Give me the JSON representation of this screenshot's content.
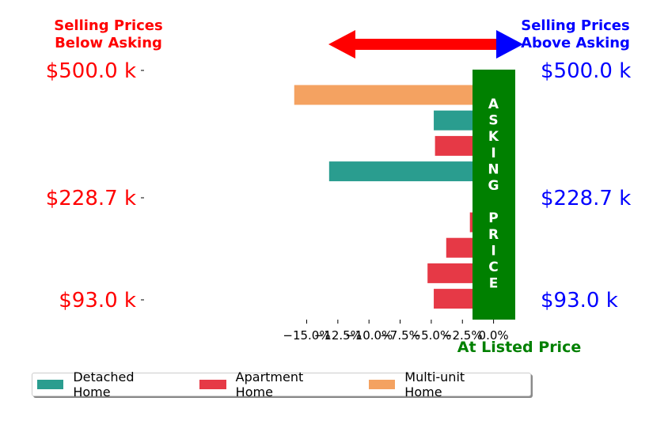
{
  "chart_data": {
    "type": "bar",
    "orientation": "horizontal",
    "x_ticks": [
      -15.0,
      -12.5,
      -10.0,
      -7.5,
      -5.0,
      -2.5,
      0.0
    ],
    "x_tick_labels": [
      "−15.0%",
      "−12.5%",
      "−10.0%",
      "−7.5%",
      "−5.0%",
      "−2.5%",
      "0.0%"
    ],
    "xlim": [
      -17.5,
      1.5
    ],
    "y_left_labels": [
      "$500.0 k",
      "$228.7 k",
      "$93.0 k"
    ],
    "y_right_labels": [
      "$500.0 k",
      "$228.7 k",
      "$93.0 k"
    ],
    "bars": [
      {
        "series": "Multi-unit Home",
        "value": -16.0
      },
      {
        "series": "Detached Home",
        "value": -4.8
      },
      {
        "series": "Apartment Home",
        "value": -4.7
      },
      {
        "series": "Detached Home",
        "value": -13.2
      },
      {
        "series": "Apartment Home",
        "value": 0.8
      },
      {
        "series": "Apartment Home",
        "value": -1.9
      },
      {
        "series": "Apartment Home",
        "value": -3.8
      },
      {
        "series": "Apartment Home",
        "value": -5.3
      },
      {
        "series": "Apartment Home",
        "value": -4.8
      }
    ],
    "series": [
      {
        "name": "Detached Home",
        "color": "#2a9d8f"
      },
      {
        "name": "Apartment Home",
        "color": "#e63946"
      },
      {
        "name": "Multi-unit Home",
        "color": "#f4a261"
      }
    ],
    "band_label": [
      "A",
      "S",
      "K",
      "I",
      "N",
      "G",
      "",
      "P",
      "R",
      "I",
      "C",
      "E"
    ],
    "band_color": "#008000",
    "left_title": [
      "Selling Prices",
      "Below Asking"
    ],
    "right_title": [
      "Selling Prices",
      "Above Asking"
    ],
    "bottom_label": "At Listed Price",
    "left_color": "#ff0000",
    "right_color": "#0000ff",
    "arrow_color": "#ff0000",
    "arrow_head_right_color": "#0000ff",
    "legend_position": "bottom-left"
  }
}
